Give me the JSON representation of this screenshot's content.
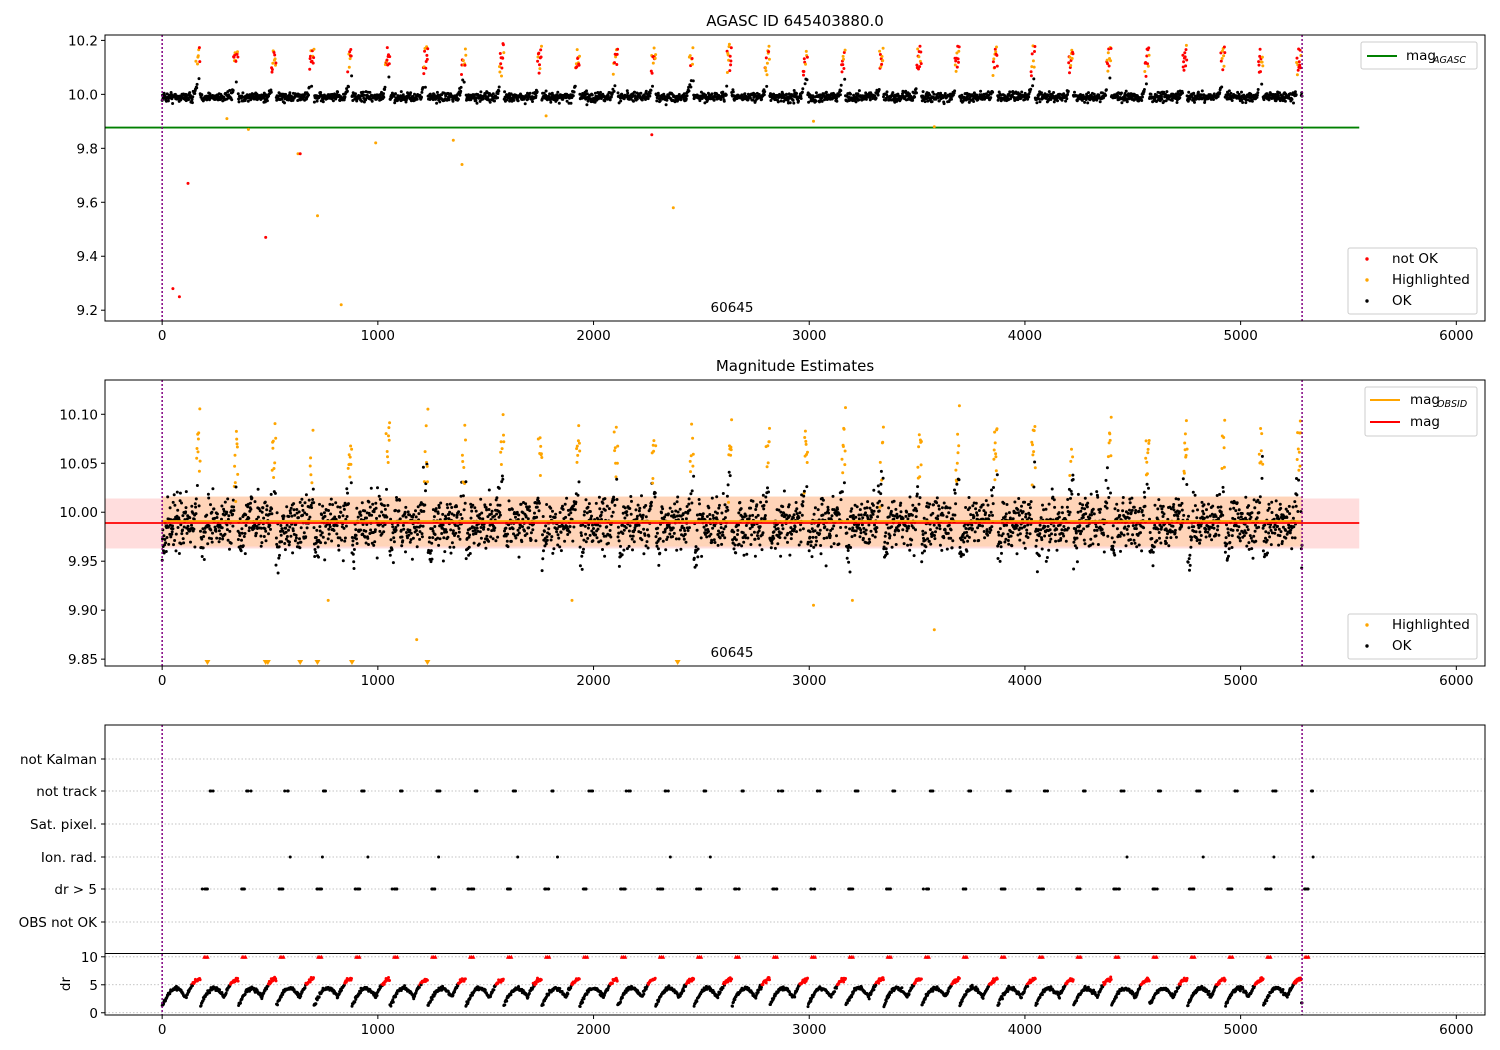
{
  "figure": {
    "panel1_title": "AGASC ID 645403880.0",
    "panel2_title": "Magnitude Estimates",
    "obsid_label": "60645"
  },
  "legends": {
    "top_line": "mag",
    "top_line_sub": "AGASC",
    "top_notok": "not OK",
    "top_highlighted": "Highlighted",
    "top_ok": "OK",
    "mid_obsid": "mag",
    "mid_obsid_sub": "OBSID",
    "mid_mag": "mag",
    "mid_highlighted": "Highlighted",
    "mid_ok": "OK"
  },
  "colors": {
    "ok": "#000000",
    "highlighted": "#ffa500",
    "not_ok": "#ff0000",
    "agasc_line": "#008000",
    "obsid_line": "#ffa500",
    "mag_line": "#ff0000",
    "obs_boundary": "#800080",
    "band_red": "#ffdddd",
    "band_orange": "#ffd4b8"
  },
  "chart_data": [
    {
      "type": "scatter",
      "title": "AGASC ID 645403880.0",
      "xlim": [
        -265,
        6133
      ],
      "ylim": [
        9.16,
        10.22
      ],
      "xticks": [
        0,
        1000,
        2000,
        3000,
        4000,
        5000,
        6000
      ],
      "yticks": [
        9.2,
        9.4,
        9.6,
        9.8,
        10.0,
        10.2
      ],
      "ytick_labels": [
        "9.2",
        "9.4",
        "9.6",
        "9.8",
        "10.0",
        "10.2"
      ],
      "mag_agasc": 9.877,
      "mag_agasc_xrange": [
        -265,
        5550
      ],
      "obs_boundaries": [
        0,
        5285
      ],
      "ok_baseline": 9.99,
      "ok_spread": 0.028,
      "highlighted_outliers": [
        [
          300,
          9.91
        ],
        [
          400,
          9.87
        ],
        [
          630,
          9.78
        ],
        [
          720,
          9.55
        ],
        [
          830,
          9.22
        ],
        [
          990,
          9.82
        ],
        [
          1350,
          9.83
        ],
        [
          1390,
          9.74
        ],
        [
          1780,
          9.92
        ],
        [
          2370,
          9.58
        ],
        [
          3020,
          9.9
        ],
        [
          3580,
          9.88
        ]
      ],
      "not_ok_outliers": [
        [
          50,
          9.28
        ],
        [
          80,
          9.25
        ],
        [
          120,
          9.67
        ],
        [
          480,
          9.47
        ],
        [
          640,
          9.78
        ],
        [
          2270,
          9.85
        ]
      ],
      "obsid_text": "60645",
      "legend": [
        "not OK",
        "Highlighted",
        "OK",
        "mag AGASC"
      ],
      "legend_placement": [
        "lower right",
        "upper right"
      ]
    },
    {
      "type": "scatter",
      "title": "Magnitude Estimates",
      "xlim": [
        -265,
        6133
      ],
      "ylim": [
        9.843,
        10.135
      ],
      "xticks": [
        0,
        1000,
        2000,
        3000,
        4000,
        5000,
        6000
      ],
      "yticks": [
        9.85,
        9.9,
        9.95,
        10.0,
        10.05,
        10.1
      ],
      "ytick_labels": [
        "9.85",
        "9.90",
        "9.95",
        "10.00",
        "10.05",
        "10.10"
      ],
      "mag_obsid": 9.991,
      "mag": 9.989,
      "mag_band": [
        9.963,
        10.014
      ],
      "obsid_band": [
        9.965,
        10.016
      ],
      "line_xrange": [
        -265,
        5550
      ],
      "obs_boundaries": [
        0,
        5285
      ],
      "clipped_low_markers_x": [
        210,
        480,
        490,
        640,
        720,
        880,
        1230,
        2390
      ],
      "highlighted_outliers": [
        [
          770,
          9.91
        ],
        [
          1180,
          9.87
        ],
        [
          1900,
          9.91
        ],
        [
          3020,
          9.905
        ],
        [
          3200,
          9.91
        ],
        [
          3580,
          9.88
        ]
      ],
      "obsid_text": "60645",
      "legend": [
        "mag OBSID",
        "mag",
        "Highlighted",
        "OK"
      ],
      "legend_placement": [
        "upper right",
        "lower right"
      ]
    },
    {
      "type": "scatter",
      "title": "",
      "categories": [
        "not Kalman",
        "not track",
        "Sat. pixel.",
        "Ion. rad.",
        "dr > 5",
        "OBS not OK"
      ],
      "xlim": [
        -265,
        6133
      ],
      "obs_boundaries": [
        0,
        5285
      ],
      "grid": true
    },
    {
      "type": "scatter",
      "ylabel": "dr",
      "xlim": [
        -265,
        6133
      ],
      "ylim": [
        -0.4,
        10.5
      ],
      "xticks": [
        0,
        1000,
        2000,
        3000,
        4000,
        5000,
        6000
      ],
      "yticks": [
        0,
        5,
        10
      ],
      "ytick_labels": [
        "0",
        "5",
        "10"
      ],
      "threshold": 5,
      "obs_boundaries": [
        0,
        5285
      ],
      "grid": true
    }
  ]
}
